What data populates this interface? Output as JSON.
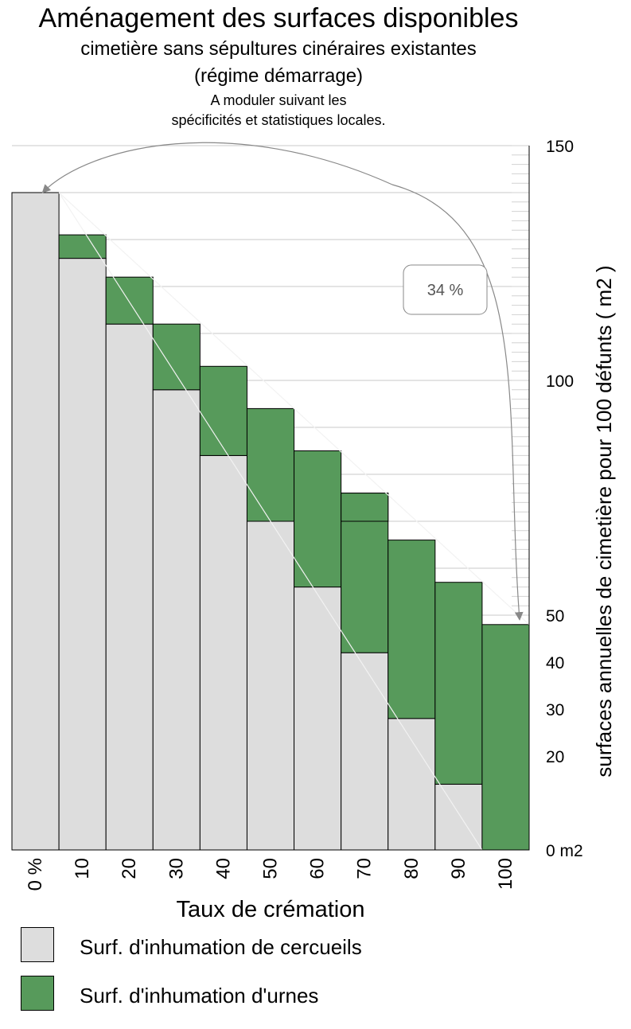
{
  "chart_data": {
    "type": "bar",
    "stacked": true,
    "title": "Aménagement des surfaces disponibles",
    "subtitle": [
      "cimetière sans sépultures cinéraires existantes",
      "(régime démarrage)"
    ],
    "note": [
      "A moduler suivant les",
      "spécificités et statistiques locales."
    ],
    "xlabel": "Taux de crémation",
    "ylabel": "surfaces annuelles de cimetière pour 100 défunts ( m2 )",
    "categories": [
      "0 %",
      "10",
      "20",
      "30",
      "40",
      "50",
      "60",
      "70",
      "80",
      "90",
      "100"
    ],
    "y_tick_labels": [
      "0 m2",
      "20",
      "30",
      "40",
      "50",
      "100",
      "150"
    ],
    "y_tick_values": [
      0,
      20,
      30,
      40,
      50,
      100,
      150
    ],
    "series": [
      {
        "name": "Surf.  d'inhumation de cercueils",
        "color": "#dddddd",
        "values": [
          140,
          126,
          112,
          98,
          84,
          70,
          56,
          42,
          28,
          14,
          0
        ]
      },
      {
        "name": "Surf.  d'inhumation d'urnes",
        "color": "#579a5b",
        "values": [
          0,
          5,
          10,
          14,
          19,
          24,
          29,
          34,
          38,
          43,
          48
        ]
      }
    ],
    "extra_segment": {
      "category": "70",
      "from": 70,
      "to": 76
    },
    "annotation": {
      "text": "34 %",
      "from_value": 140,
      "to_value": 48
    },
    "ylim": [
      0,
      150
    ],
    "legend_position": "bottom-left"
  }
}
